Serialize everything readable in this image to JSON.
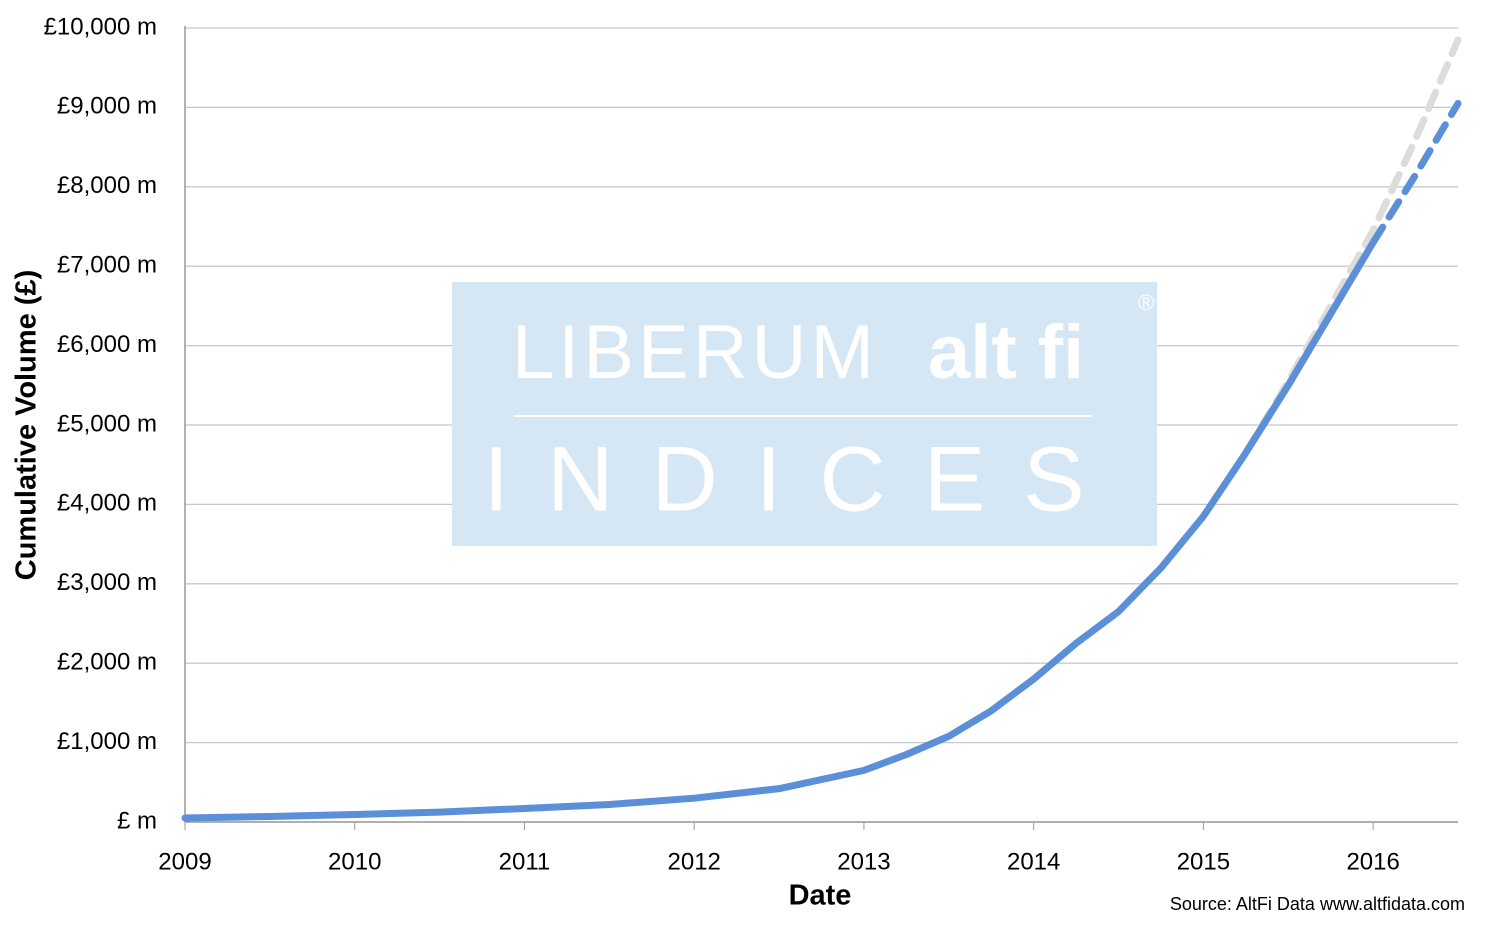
{
  "chart_data": {
    "type": "line",
    "x_label": "Date",
    "y_label": "Cumulative Volume (£)",
    "source": "Source: AltFi Data www.altfidata.com",
    "watermark": {
      "brand": "LIBERUM",
      "brand2": "alt fi",
      "mark": "®",
      "subtitle": "INDICES"
    },
    "xlim": [
      2009,
      2016.5
    ],
    "xticks": [
      2009,
      2010,
      2011,
      2012,
      2013,
      2014,
      2015,
      2016
    ],
    "ylim": [
      0,
      10000
    ],
    "yticks": [
      {
        "value": 0,
        "label": "£ m"
      },
      {
        "value": 1000,
        "label": "£1,000 m"
      },
      {
        "value": 2000,
        "label": "£2,000 m"
      },
      {
        "value": 3000,
        "label": "£3,000 m"
      },
      {
        "value": 4000,
        "label": "£4,000 m"
      },
      {
        "value": 5000,
        "label": "£5,000 m"
      },
      {
        "value": 6000,
        "label": "£6,000 m"
      },
      {
        "value": 7000,
        "label": "£7,000 m"
      },
      {
        "value": 8000,
        "label": "£8,000 m"
      },
      {
        "value": 9000,
        "label": "£9,000 m"
      },
      {
        "value": 10000,
        "label": "£10,000 m"
      }
    ],
    "grid": true,
    "series": [
      {
        "color": "#dcdcdc",
        "dashed": true,
        "x": [
          2015.25,
          2015.5,
          2015.75,
          2016,
          2016.25,
          2016.5
        ],
        "values": [
          4650,
          5550,
          6500,
          7450,
          8600,
          9850
        ]
      },
      {
        "color": "#5b8fd8",
        "dashed": false,
        "x": [
          2009,
          2009.5,
          2010,
          2010.5,
          2011,
          2011.5,
          2012,
          2012.5,
          2013,
          2013.25,
          2013.5,
          2013.75,
          2014,
          2014.25,
          2014.5,
          2014.75,
          2015,
          2015.25,
          2015.5,
          2015.75,
          2016
        ],
        "values": [
          50,
          70,
          95,
          125,
          170,
          220,
          300,
          420,
          650,
          850,
          1080,
          1400,
          1800,
          2250,
          2650,
          3200,
          3850,
          4650,
          5500,
          6400,
          7300
        ]
      },
      {
        "color": "#5b8fd8",
        "dashed": true,
        "x": [
          2016,
          2016.25,
          2016.5
        ],
        "values": [
          7300,
          8150,
          9050
        ]
      }
    ]
  }
}
